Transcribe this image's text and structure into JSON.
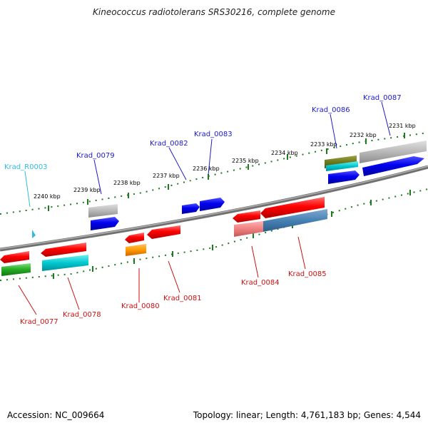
{
  "title": "Kineococcus radiotolerans SRS30216, complete genome",
  "footer": {
    "accession": "Accession: NC_009664",
    "summary": "Topology: linear; Length: 4,761,183 bp; Genes: 4,544"
  },
  "scale_labels": [
    "2240 kbp",
    "2239 kbp",
    "2238 kbp",
    "2237 kbp",
    "2236 kbp",
    "2235 kbp",
    "2234 kbp",
    "2233 kbp",
    "2232 kbp",
    "2231 kbp"
  ],
  "genes_top": [
    "Krad_R0003",
    "Krad_0079",
    "Krad_0082",
    "Krad_0083",
    "Krad_0086",
    "Krad_0087"
  ],
  "genes_bottom": [
    "Krad_0077",
    "Krad_0078",
    "Krad_0080",
    "Krad_0081",
    "Krad_0084",
    "Krad_0085"
  ],
  "colors": {
    "top_label": "#1a1acc",
    "trna_label": "#33bbdd",
    "bottom_label": "#cc1111",
    "backbone": "#808080",
    "scale": "#1f7a1f"
  }
}
